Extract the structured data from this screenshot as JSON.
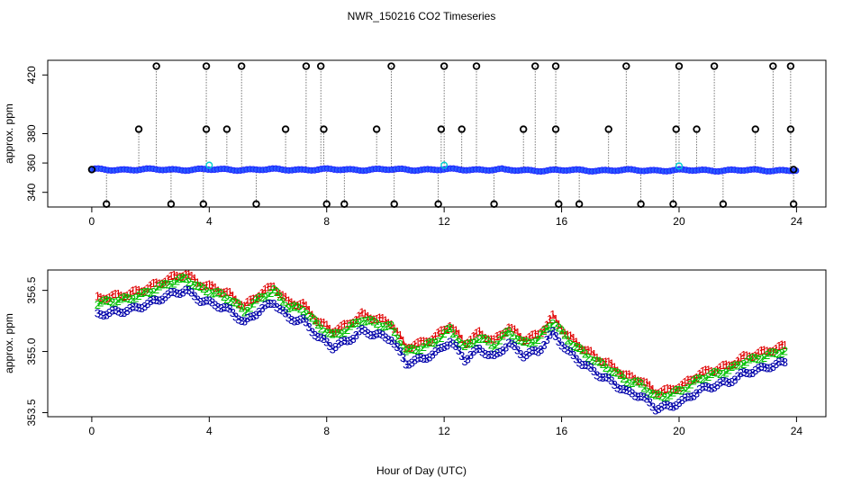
{
  "figure": {
    "title": "NWR_150216  CO2 Timeseries",
    "xlabel": "Hour of Day (UTC)"
  },
  "colors": {
    "black": "#000000",
    "blue": "#1a1aff",
    "cyan": "#00d0d0",
    "green": "#00c000",
    "red": "#e00000",
    "navy": "#0000aa"
  },
  "chart_data": [
    {
      "type": "scatter",
      "name": "top-panel",
      "xlabel": "",
      "ylabel": "approx. ppm",
      "xlim": [
        -1.5,
        25
      ],
      "ylim": [
        330,
        430
      ],
      "xticks": [
        0,
        4,
        8,
        12,
        16,
        20,
        24
      ],
      "yticks": [
        340,
        380,
        420
      ],
      "ytick_labels_extra": [
        {
          "value": 360,
          "label": "360"
        }
      ],
      "baseline": 355.5,
      "high_spikes_hours": [
        2.2,
        3.9,
        5.1,
        7.3,
        7.8,
        10.2,
        12.0,
        13.1,
        15.1,
        15.8,
        18.2,
        20.0,
        21.2,
        23.2,
        23.8
      ],
      "mid_spikes_hours": [
        1.6,
        3.9,
        4.6,
        6.6,
        7.9,
        9.7,
        11.9,
        12.6,
        14.7,
        15.8,
        17.6,
        19.9,
        20.6,
        22.6,
        23.8
      ],
      "low_spikes_hours": [
        0.5,
        2.7,
        3.8,
        5.6,
        8.0,
        8.6,
        10.3,
        11.8,
        13.7,
        15.9,
        16.6,
        18.7,
        19.8,
        21.5,
        23.9
      ],
      "cyan_points": [
        {
          "x": 4.0,
          "y": 358.5
        },
        {
          "x": 12.0,
          "y": 358.5
        },
        {
          "x": 20.0,
          "y": 358.0
        }
      ],
      "high_value": 426,
      "mid_value": 383,
      "low_value": 332
    },
    {
      "type": "line",
      "name": "bottom-panel",
      "xlabel": "Hour of Day (UTC)",
      "ylabel": "approx. ppm",
      "xlim": [
        -1.5,
        25
      ],
      "ylim": [
        353.4,
        357.0
      ],
      "xticks": [
        0,
        4,
        8,
        12,
        16,
        20,
        24
      ],
      "yticks": [
        353.5,
        355.0,
        356.5
      ],
      "series": [
        {
          "name": "1",
          "marker": "1",
          "color": "#e00000",
          "offset": 0.12
        },
        {
          "name": "2",
          "marker": "2",
          "color": "#00c000",
          "offset": 0.0
        },
        {
          "name": "3",
          "marker": "3",
          "color": "#0000aa",
          "offset": -0.28
        }
      ],
      "x": [
        0.2,
        0.7,
        1.2,
        1.7,
        2.2,
        2.7,
        3.2,
        3.7,
        4.2,
        4.7,
        5.2,
        5.7,
        6.2,
        6.7,
        7.2,
        7.7,
        8.2,
        8.7,
        9.2,
        9.7,
        10.2,
        10.7,
        11.2,
        11.7,
        12.2,
        12.7,
        13.2,
        13.7,
        14.2,
        14.7,
        15.2,
        15.7,
        16.2,
        16.7,
        17.2,
        17.7,
        18.2,
        18.7,
        19.2,
        19.7,
        20.2,
        20.7,
        21.2,
        21.7,
        22.2,
        22.7,
        23.2,
        23.7
      ],
      "values": [
        356.2,
        356.25,
        356.3,
        356.4,
        356.55,
        356.7,
        356.8,
        356.55,
        356.45,
        356.3,
        356.0,
        356.3,
        356.5,
        356.1,
        356.05,
        355.65,
        355.4,
        355.55,
        355.8,
        355.7,
        355.6,
        355.0,
        355.1,
        355.25,
        355.55,
        355.1,
        355.35,
        355.15,
        355.5,
        355.2,
        355.3,
        355.75,
        355.3,
        355.0,
        354.75,
        354.55,
        354.3,
        354.2,
        353.9,
        353.95,
        354.1,
        354.35,
        354.45,
        354.55,
        354.75,
        354.85,
        354.95,
        355.05
      ]
    }
  ]
}
